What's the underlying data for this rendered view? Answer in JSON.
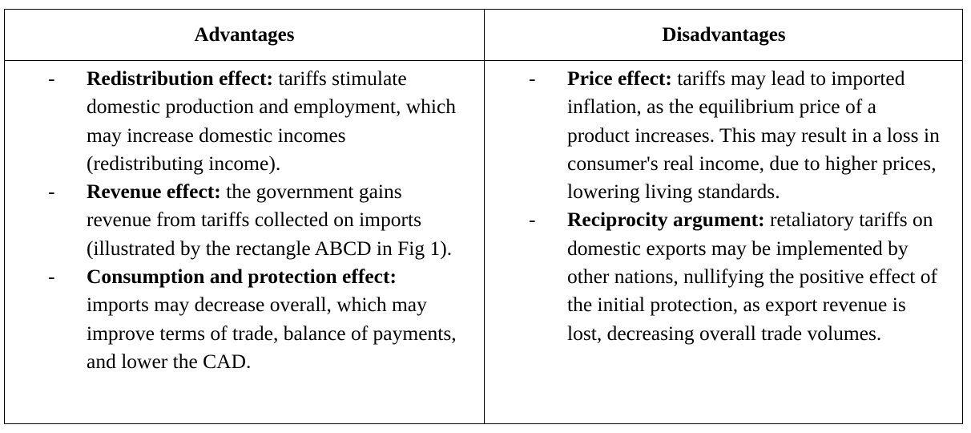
{
  "table": {
    "headers": {
      "left": "Advantages",
      "right": "Disadvantages"
    },
    "bullet_marker": "-",
    "advantages": [
      {
        "term": "Redistribution effect:",
        "text": "tariffs stimulate domestic production and employment, which may increase domestic incomes (redistributing income)."
      },
      {
        "term": "Revenue effect:",
        "text": "the government gains revenue from tariffs collected on imports (illustrated by the rectangle ABCD in Fig 1)."
      },
      {
        "term": "Consumption and protection effect:",
        "text": "imports may decrease overall, which may improve terms of trade, balance of payments, and lower the CAD."
      }
    ],
    "disadvantages": [
      {
        "term": "Price effect:",
        "text": "tariffs may lead to imported inflation, as the equilibrium price of a product increases. This may result in a loss in consumer's real income, due to higher prices, lowering living standards."
      },
      {
        "term": "Reciprocity argument:",
        "text": "retaliatory tariffs on domestic exports may be implemented by other nations, nullifying the positive effect of the initial protection, as export revenue is lost, decreasing overall trade volumes."
      }
    ]
  }
}
